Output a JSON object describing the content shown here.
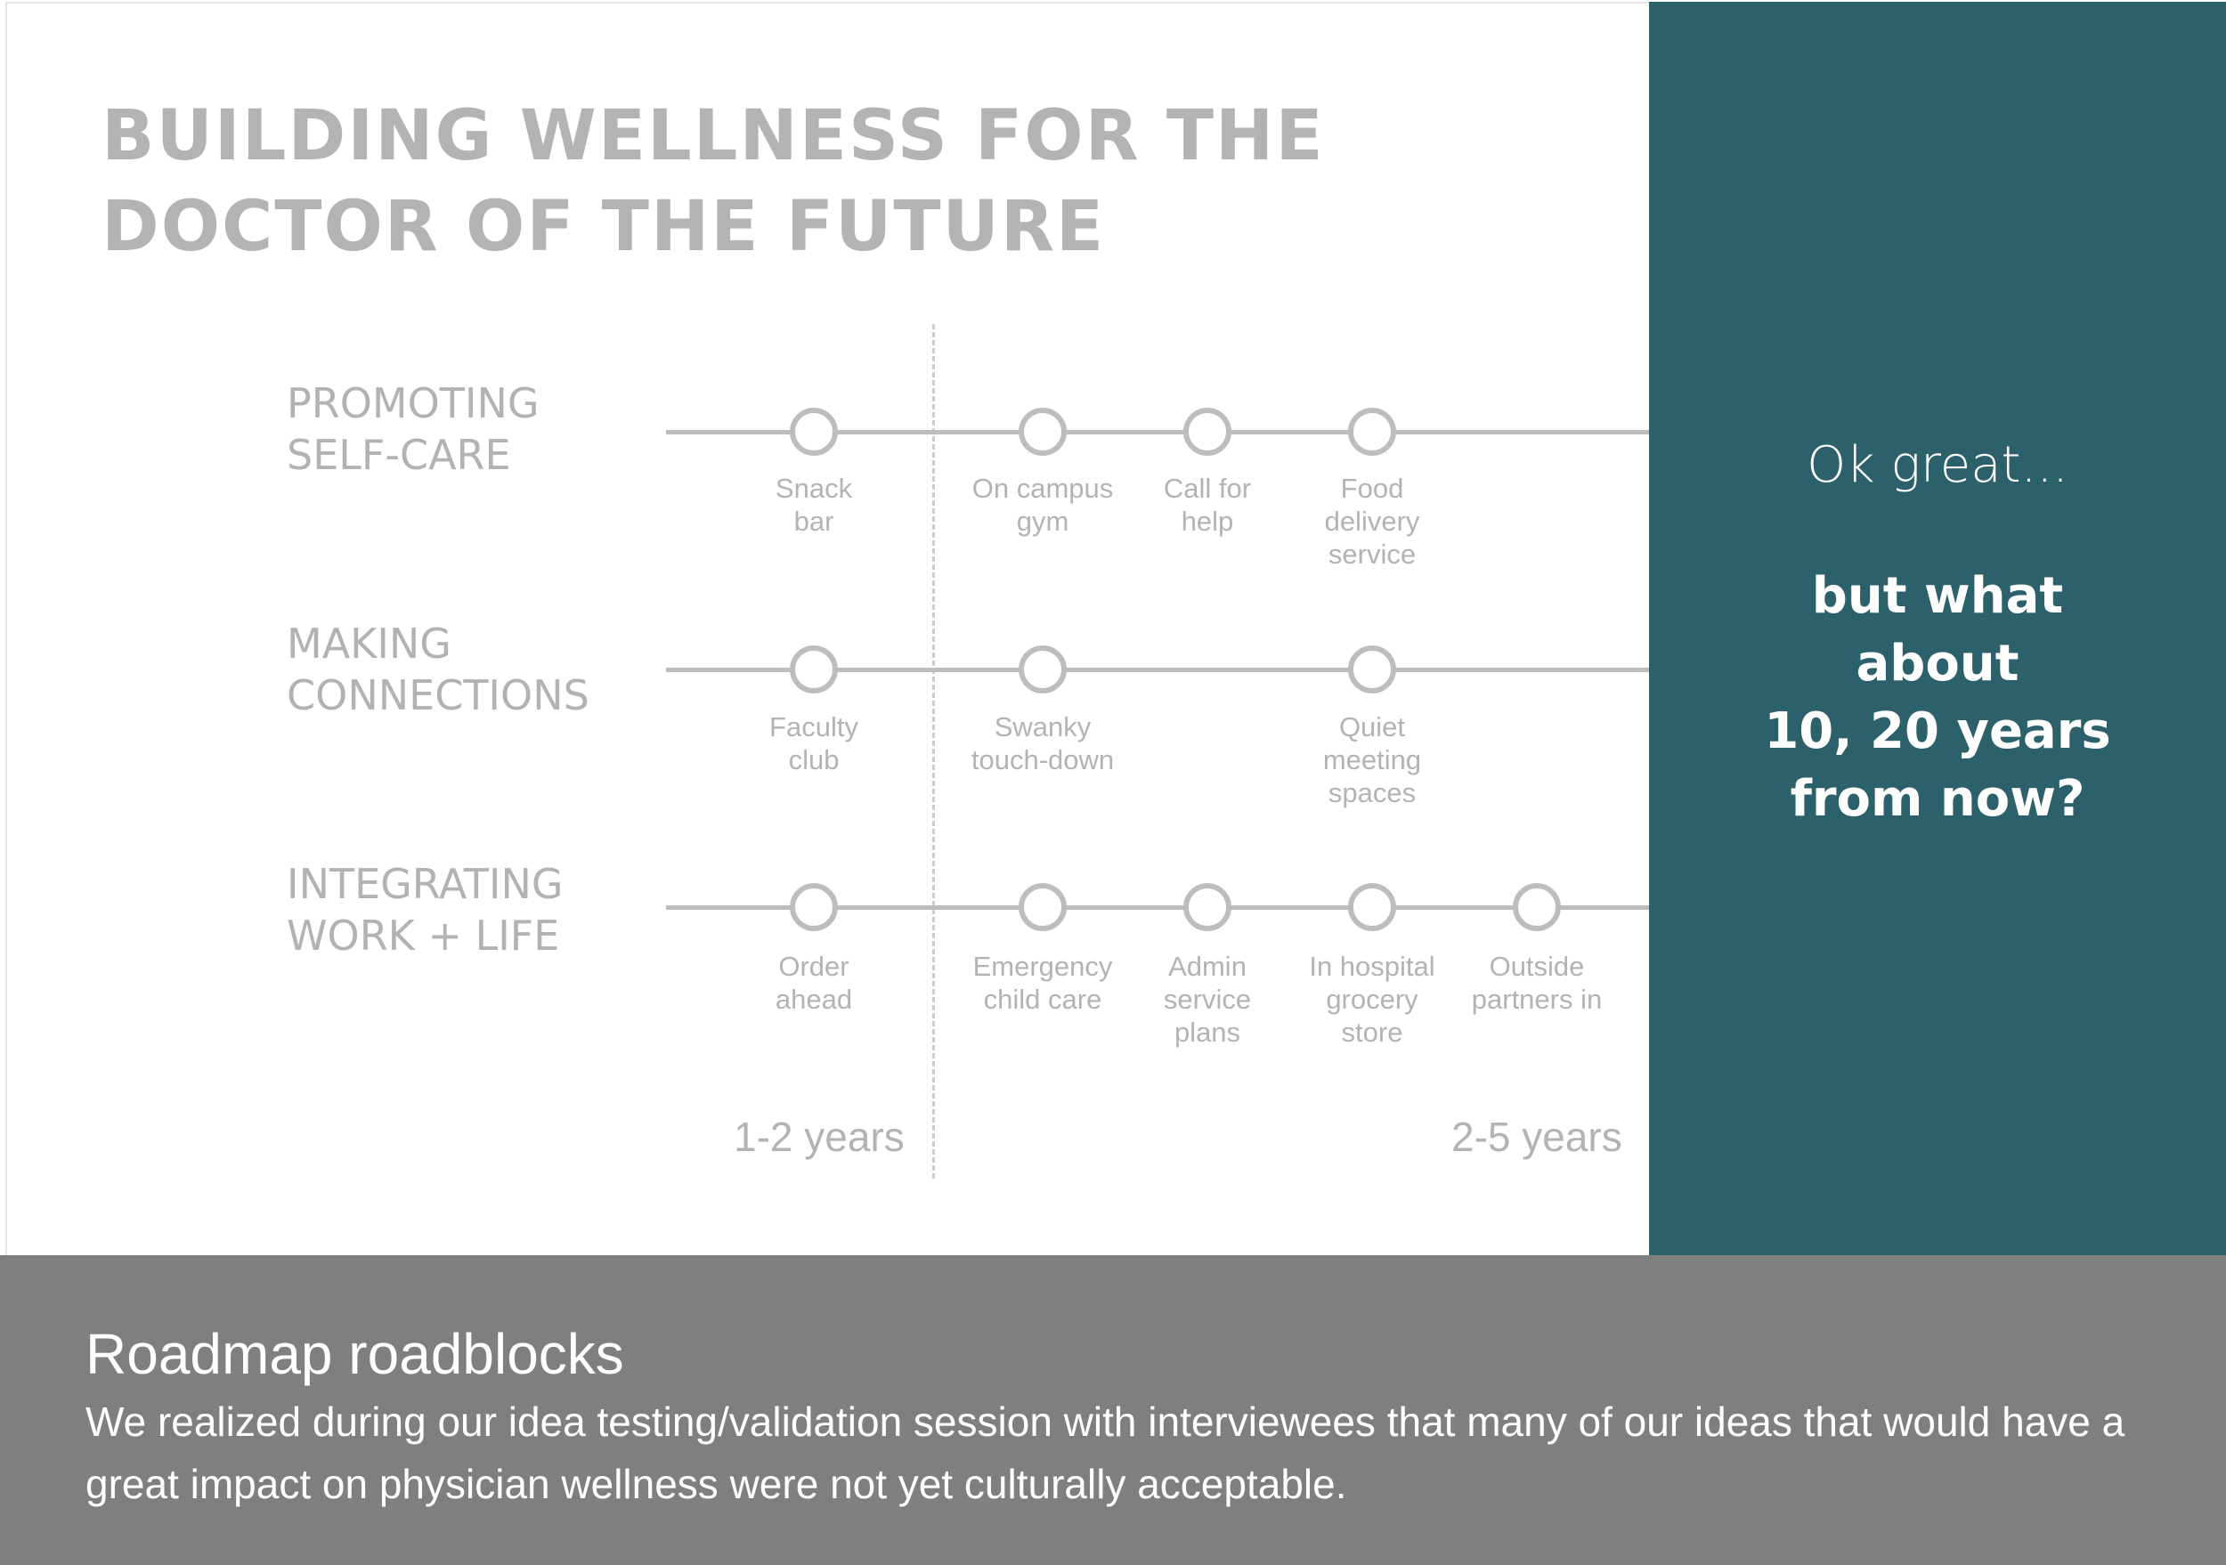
{
  "title": {
    "line1": "BUILDING WELLNESS FOR THE",
    "line2": "DOCTOR OF THE FUTURE"
  },
  "tracks": [
    {
      "label_line1": "PROMOTING",
      "label_line2": "SELF-CARE",
      "nodes": [
        "Snack\nbar",
        "On campus\ngym",
        "Call for\nhelp",
        "Food\ndelivery\nservice"
      ]
    },
    {
      "label_line1": "MAKING",
      "label_line2": "CONNECTIONS",
      "nodes": [
        "Faculty\nclub",
        "Swanky\ntouch-down",
        "Quiet\nmeeting\nspaces"
      ]
    },
    {
      "label_line1": "INTEGRATING",
      "label_line2": "WORK + LIFE",
      "nodes": [
        "Order\nahead",
        "Emergency\nchild care",
        "Admin\nservice\nplans",
        "In hospital\ngrocery\nstore",
        "Outside\npartners in"
      ]
    }
  ],
  "phases": {
    "short": "1-2 years",
    "long": "2-5 years"
  },
  "side_panel": {
    "intro": "Ok great...",
    "question_lines": [
      "but what",
      "about",
      "10, 20 years",
      "from now?"
    ],
    "background": "#2c616c"
  },
  "footer": {
    "heading": "Roadmap roadblocks",
    "body": "We realized during our idea testing/validation session with interviewees that many of our ideas that would have a great impact on physician wellness were not yet culturally acceptable."
  },
  "colors": {
    "track_gray": "#bdbdbd",
    "text_gray": "#b3b3b3",
    "footer_gray": "#7f7f7f"
  }
}
